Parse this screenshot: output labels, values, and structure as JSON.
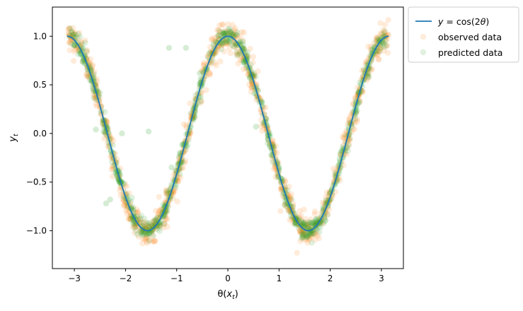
{
  "chart_data": {
    "type": "scatter",
    "title": "",
    "xlabel": "θ(x_t)",
    "ylabel": "y_t",
    "xlim": [
      -3.43,
      3.43
    ],
    "ylim": [
      -1.39,
      1.3
    ],
    "xticks": [
      -3,
      -2,
      -1,
      0,
      1,
      2,
      3
    ],
    "yticks": [
      -1.0,
      -0.5,
      0.0,
      0.5,
      1.0
    ],
    "xtick_labels": [
      "−3",
      "−2",
      "−1",
      "0",
      "1",
      "2",
      "3"
    ],
    "ytick_labels": [
      "−1.0",
      "−0.5",
      "0.0",
      "0.5",
      "1.0"
    ],
    "grid": false,
    "legend_position": "outside-top-right",
    "series": [
      {
        "name": "y = cos(2θ)",
        "kind": "line",
        "color": "#1f77b4",
        "function": "cos(2*theta)",
        "x_range": [
          -3.1416,
          3.1416
        ]
      },
      {
        "name": "observed data",
        "kind": "scatter",
        "color": "#ff7f0e",
        "alpha": 0.15,
        "noise_std": 0.08,
        "approx_points": 1000
      },
      {
        "name": "predicted data",
        "kind": "scatter",
        "color": "#2ca02c",
        "alpha": 0.15,
        "noise_std": 0.05,
        "approx_points": 1000,
        "outliers": [
          {
            "x": -1.15,
            "y": 0.88
          },
          {
            "x": -0.82,
            "y": 0.88
          },
          {
            "x": -1.55,
            "y": 0.02
          },
          {
            "x": -2.43,
            "y": 0.02
          },
          {
            "x": -2.07,
            "y": 0.0
          },
          {
            "x": -2.58,
            "y": 0.04
          },
          {
            "x": -2.3,
            "y": -0.68
          },
          {
            "x": -2.38,
            "y": -0.72
          },
          {
            "x": 0.55,
            "y": 0.07
          },
          {
            "x": 0.75,
            "y": 0.15
          },
          {
            "x": -0.55,
            "y": 0.62
          },
          {
            "x": -1.1,
            "y": -0.35
          }
        ]
      }
    ],
    "legend": [
      {
        "label": "y = cos(2θ)",
        "style": "line",
        "color": "#1f77b4"
      },
      {
        "label": "observed data",
        "style": "marker",
        "color": "#ff7f0e"
      },
      {
        "label": "predicted data",
        "style": "marker",
        "color": "#2ca02c"
      }
    ]
  }
}
